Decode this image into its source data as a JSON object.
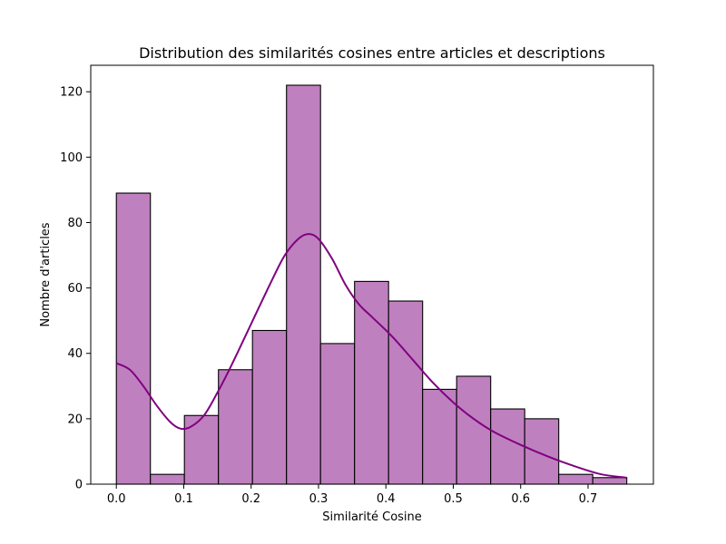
{
  "chart_data": {
    "type": "bar",
    "title": "Distribution des similarités cosines entre articles et descriptions",
    "xlabel": "Similarité Cosine",
    "ylabel": "Nombre d'articles",
    "xlim": [
      -0.038,
      0.797
    ],
    "ylim": [
      0,
      128.1
    ],
    "x_ticks": [
      0.0,
      0.1,
      0.2,
      0.3,
      0.4,
      0.5,
      0.6,
      0.7
    ],
    "x_tick_labels": [
      "0.0",
      "0.1",
      "0.2",
      "0.3",
      "0.4",
      "0.5",
      "0.6",
      "0.7"
    ],
    "y_ticks": [
      0,
      20,
      40,
      60,
      80,
      100,
      120
    ],
    "y_tick_labels": [
      "0",
      "20",
      "40",
      "60",
      "80",
      "100",
      "120"
    ],
    "bins": [
      [
        0.0,
        0.0505
      ],
      [
        0.0505,
        0.101
      ],
      [
        0.101,
        0.1515
      ],
      [
        0.1515,
        0.202
      ],
      [
        0.202,
        0.2525
      ],
      [
        0.2525,
        0.303
      ],
      [
        0.303,
        0.3535
      ],
      [
        0.3535,
        0.404
      ],
      [
        0.404,
        0.4545
      ],
      [
        0.4545,
        0.505
      ],
      [
        0.505,
        0.5555
      ],
      [
        0.5555,
        0.606
      ],
      [
        0.606,
        0.6565
      ],
      [
        0.6565,
        0.707
      ],
      [
        0.707,
        0.7575
      ]
    ],
    "values": [
      89,
      3,
      21,
      35,
      47,
      122,
      43,
      62,
      56,
      29,
      33,
      23,
      20,
      3,
      2
    ],
    "kde": {
      "x": [
        0.0,
        0.02,
        0.04,
        0.06,
        0.08,
        0.095,
        0.11,
        0.13,
        0.15,
        0.17,
        0.2,
        0.23,
        0.25,
        0.27,
        0.285,
        0.3,
        0.32,
        0.34,
        0.36,
        0.38,
        0.41,
        0.44,
        0.47,
        0.5,
        0.53,
        0.56,
        0.6,
        0.64,
        0.68,
        0.72,
        0.757
      ],
      "y": [
        37,
        35,
        30,
        24,
        19,
        17,
        17.5,
        21,
        28,
        36,
        49,
        62,
        70,
        75,
        76.5,
        75,
        69,
        61,
        55,
        51,
        45,
        38,
        31,
        25,
        20,
        16,
        12,
        8.5,
        5.5,
        3,
        2
      ]
    },
    "grid": false,
    "legend": "none"
  },
  "colors": {
    "bar_fill": "#bf80bf",
    "bar_edge": "#000000",
    "kde_line": "#800080"
  }
}
